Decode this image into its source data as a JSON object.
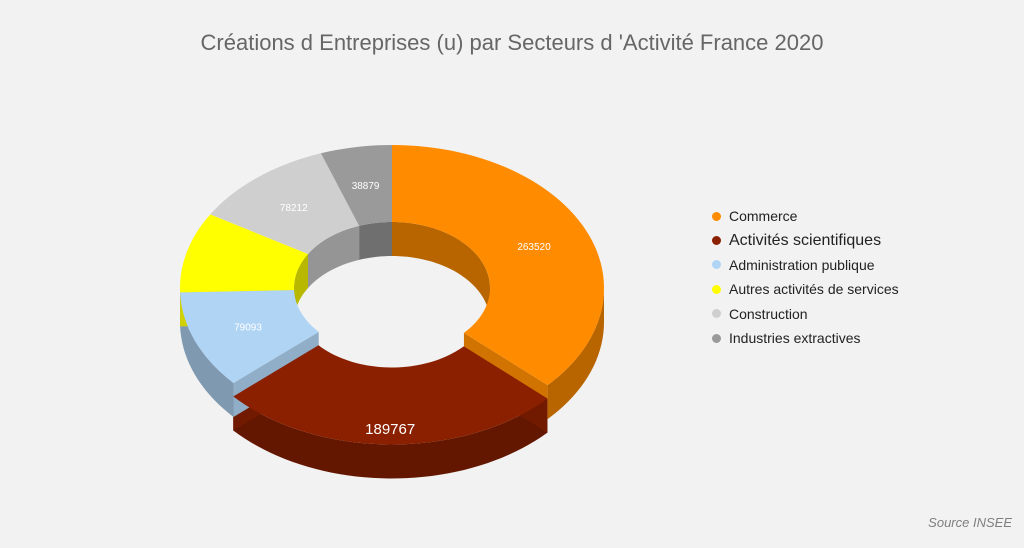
{
  "source": "Source INSEE",
  "chart_data": {
    "type": "pie",
    "title": "Créations d Entreprises (u) par Secteurs d 'Activité France 2020",
    "categories": [
      "Commerce",
      "Activités scientifiques",
      "Administration publique",
      "Autres activités de services",
      "Construction",
      "Industries extractives"
    ],
    "values": [
      263520,
      189767,
      79093,
      65000,
      78212,
      38879
    ],
    "labels": [
      "263520",
      "189767",
      "79093",
      "",
      "78212",
      "38879"
    ],
    "colors": [
      "#ff8c00",
      "#8b2000",
      "#b0d4f4",
      "#ffff00",
      "#cfcfcf",
      "#9a9a9a"
    ],
    "exploded": [
      "Activités scientifiques"
    ],
    "donut": true,
    "legend_position": "right"
  }
}
